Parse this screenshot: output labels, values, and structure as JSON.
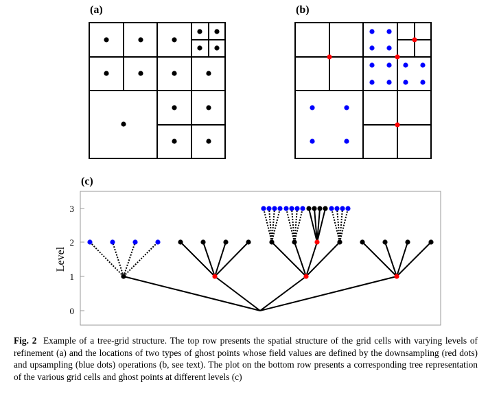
{
  "panels": {
    "a": "(a)",
    "b": "(b)",
    "c": "(c)"
  },
  "plot_c": {
    "ylabel": "Level",
    "yticks": [
      "0",
      "1",
      "2",
      "3"
    ]
  },
  "caption": {
    "label": "Fig. 2",
    "text": "Example of a tree-grid structure. The top row presents the spatial structure of the grid cells with varying levels of refinement (a) and the locations of two types of ghost points whose field values are defined by the downsampling (red dots) and upsampling (blue dots) operations (b, see text). The plot on the bottom row presents a corresponding tree representation of the various grid cells and ghost points at different levels (c)"
  },
  "colors": {
    "cell_point": "#000000",
    "downsampling_ghost": "#ff0000",
    "upsampling_ghost": "#0000ff"
  }
}
